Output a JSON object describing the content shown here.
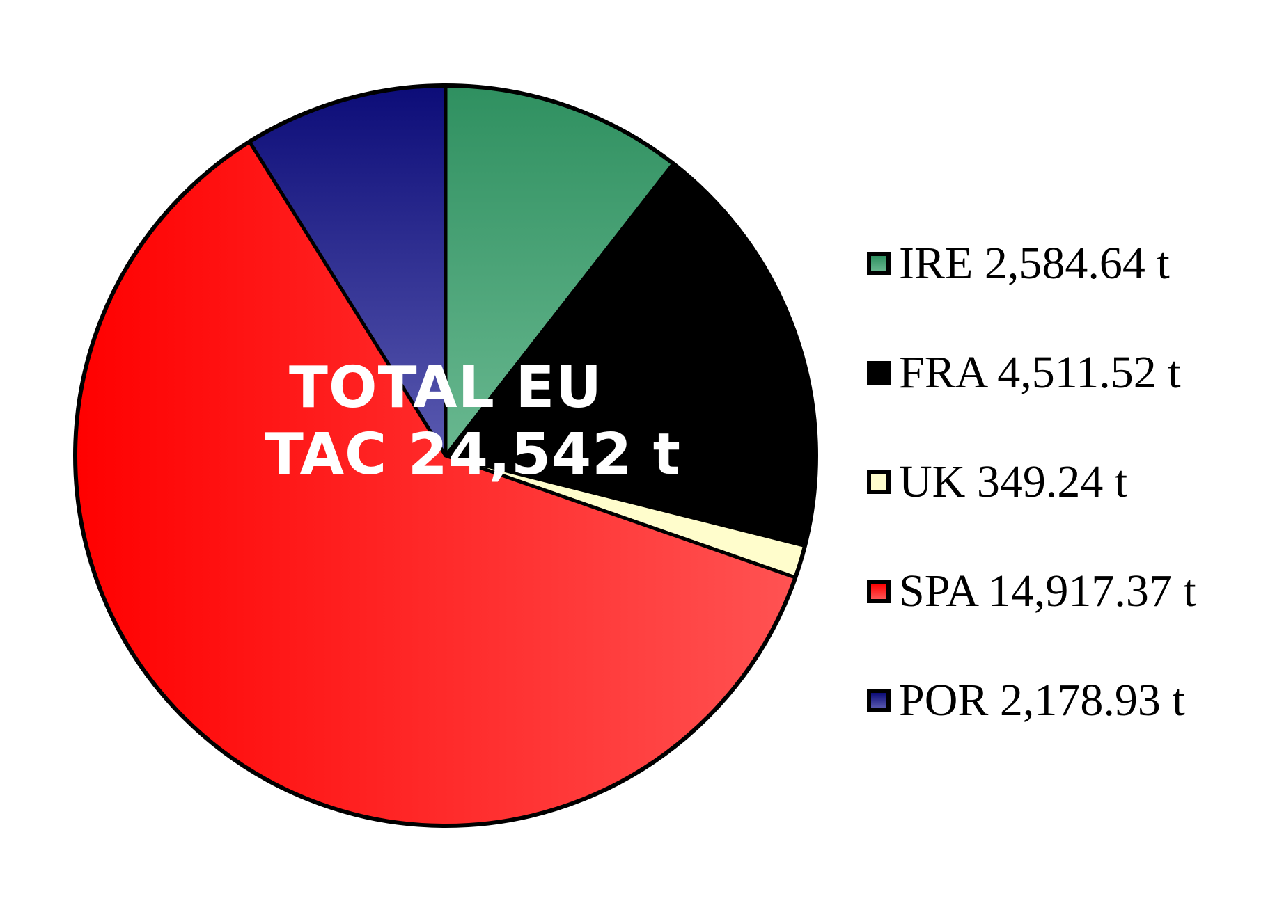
{
  "chart_data": {
    "type": "pie",
    "categories": [
      "IRE",
      "FRA",
      "UK",
      "SPA",
      "POR"
    ],
    "values": [
      2584.64,
      4511.52,
      349.24,
      14917.37,
      2178.93
    ],
    "legend_labels": [
      "IRE 2,584.64 t",
      "FRA 4,511.52 t",
      "UK 349.24 t",
      "SPA 14,917.37 t",
      "POR 2,178.93 t"
    ],
    "annotation": [
      "TOTAL EU",
      "TAC 24,542 t"
    ],
    "legend_position": "right",
    "colors": {
      "IRE": [
        "#2f9060",
        "#69b890"
      ],
      "FRA": [
        "#000000",
        "#000000"
      ],
      "UK": [
        "#fffdcc",
        "#fffdcc"
      ],
      "SPA": [
        "#ff0000",
        "#ff5555"
      ],
      "POR": [
        "#0c0c78",
        "#5a5ab0"
      ]
    }
  }
}
